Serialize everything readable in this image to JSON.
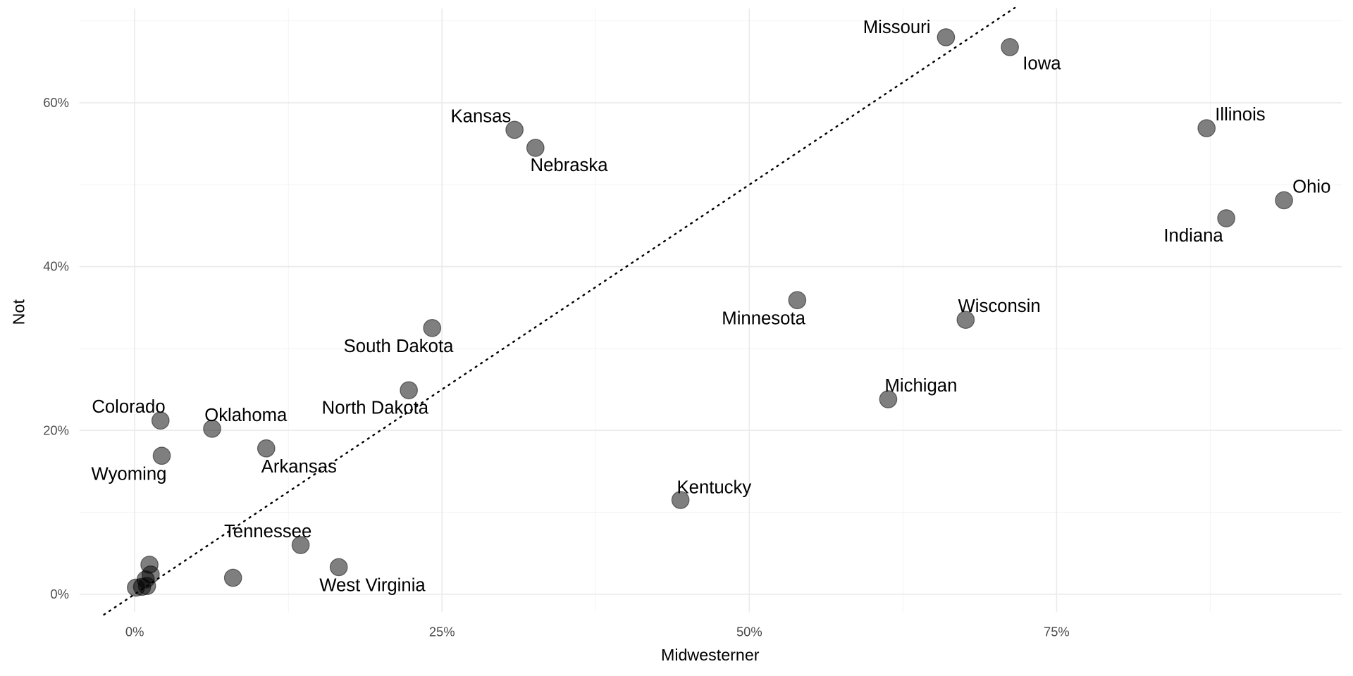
{
  "chart_data": {
    "type": "scatter",
    "xlabel": "Midwesterner",
    "ylabel": "Not",
    "xlim": [
      -4.5,
      98.2
    ],
    "ylim": [
      -2.2,
      71.5
    ],
    "x_ticks": [
      {
        "value": 0,
        "label": "0%"
      },
      {
        "value": 25,
        "label": "25%"
      },
      {
        "value": 50,
        "label": "50%"
      },
      {
        "value": 75,
        "label": "75%"
      }
    ],
    "y_ticks": [
      {
        "value": 0,
        "label": "0%"
      },
      {
        "value": 20,
        "label": "20%"
      },
      {
        "value": 40,
        "label": "40%"
      },
      {
        "value": 60,
        "label": "60%"
      }
    ],
    "grid": true,
    "reference_line": {
      "type": "y=x",
      "style": "dotted",
      "color": "#000000"
    },
    "point_color": "#000000",
    "point_alpha": 0.5,
    "points": [
      {
        "label": "Missouri",
        "x": 66.0,
        "y": 68.0
      },
      {
        "label": "Iowa",
        "x": 71.2,
        "y": 66.8
      },
      {
        "label": "Kansas",
        "x": 30.9,
        "y": 56.7
      },
      {
        "label": "Nebraska",
        "x": 32.6,
        "y": 54.5
      },
      {
        "label": "Illinois",
        "x": 87.2,
        "y": 56.9
      },
      {
        "label": "Ohio",
        "x": 93.5,
        "y": 48.1
      },
      {
        "label": "Indiana",
        "x": 88.8,
        "y": 45.9
      },
      {
        "label": "Minnesota",
        "x": 53.9,
        "y": 35.9
      },
      {
        "label": "Wisconsin",
        "x": 67.6,
        "y": 33.5
      },
      {
        "label": "South Dakota",
        "x": 24.2,
        "y": 32.5
      },
      {
        "label": "North Dakota",
        "x": 22.3,
        "y": 24.9
      },
      {
        "label": "Michigan",
        "x": 61.3,
        "y": 23.8
      },
      {
        "label": "Colorado",
        "x": 2.1,
        "y": 21.2
      },
      {
        "label": "Oklahoma",
        "x": 6.3,
        "y": 20.2
      },
      {
        "label": "Arkansas",
        "x": 10.7,
        "y": 17.8
      },
      {
        "label": "Wyoming",
        "x": 2.2,
        "y": 16.9
      },
      {
        "label": "Kentucky",
        "x": 44.4,
        "y": 11.5
      },
      {
        "label": "Tennessee",
        "x": 13.5,
        "y": 6.0
      },
      {
        "label": "West Virginia",
        "x": 16.6,
        "y": 3.3
      },
      {
        "label": "",
        "x": 8.0,
        "y": 2.0
      },
      {
        "label": "",
        "x": 1.2,
        "y": 3.6
      },
      {
        "label": "",
        "x": 1.3,
        "y": 2.4
      },
      {
        "label": "",
        "x": 0.9,
        "y": 1.8
      },
      {
        "label": "",
        "x": 1.0,
        "y": 1.0
      },
      {
        "label": "",
        "x": 0.6,
        "y": 0.9
      },
      {
        "label": "",
        "x": 0.1,
        "y": 0.8
      }
    ]
  }
}
